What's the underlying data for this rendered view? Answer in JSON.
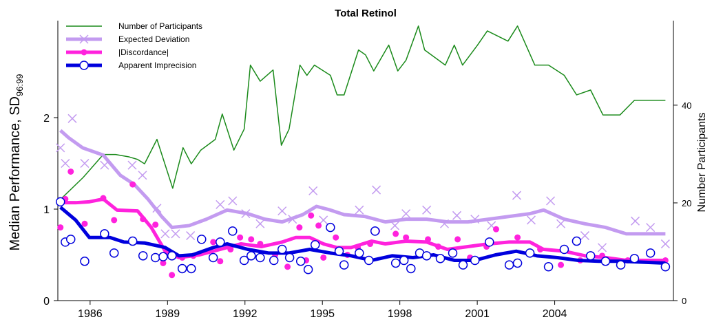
{
  "chart_data": {
    "type": "line",
    "title": "Total Retinol",
    "y_label": "Median Performance, SD",
    "y_label_subscript": "96:99",
    "y2_label": "Number Participants",
    "xlim": [
      1984.75,
      2008.6
    ],
    "xticks": [
      1986,
      1989,
      1992,
      1995,
      1998,
      2001,
      2004
    ],
    "ylim": [
      0,
      3.06
    ],
    "yticks": [
      0,
      1,
      2
    ],
    "y2lim": [
      0,
      57.3
    ],
    "y2ticks": [
      0,
      20,
      40
    ],
    "legend": "upper left",
    "series": [
      {
        "name": "Number of Participants",
        "color": "#1a8a1a",
        "axis": "y2",
        "width": 1.5,
        "marker": "none",
        "x": [
          1984.85,
          1985.73,
          1986.51,
          1986.99,
          1987.52,
          1987.84,
          1988.11,
          1988.59,
          1989.2,
          1989.6,
          1989.92,
          1990.29,
          1990.85,
          1991.12,
          1991.57,
          1991.97,
          1992.21,
          1992.59,
          1993.09,
          1993.41,
          1993.71,
          1994.13,
          1994.4,
          1994.69,
          1995.31,
          1995.57,
          1995.84,
          1996.4,
          1996.67,
          1996.99,
          1997.57,
          1997.92,
          1998.24,
          1998.72,
          1998.96,
          1999.76,
          2000.11,
          2000.43,
          2001.01,
          2001.39,
          2002.19,
          2002.56,
          2003.23,
          2003.76,
          2004.37,
          2004.85,
          2005.39,
          2005.87,
          2006.53,
          2007.09,
          2008.29
        ],
        "values": [
          20.7,
          25.2,
          29.9,
          29.9,
          29.4,
          28.9,
          28.0,
          33.0,
          23.0,
          31.3,
          28.0,
          30.8,
          33.0,
          38.2,
          30.8,
          35.1,
          48.2,
          44.9,
          47.2,
          31.8,
          35.1,
          48.2,
          46.1,
          48.2,
          46.1,
          42.1,
          42.1,
          51.3,
          50.3,
          47.0,
          52.3,
          47.0,
          49.2,
          56.2,
          51.3,
          48.2,
          52.3,
          48.2,
          52.3,
          55.2,
          53.1,
          56.2,
          48.2,
          48.2,
          46.1,
          42.1,
          43.1,
          38.0,
          38.0,
          41.0,
          41.0
        ]
      },
      {
        "name": "Expected Deviation",
        "color": "#c39bf0",
        "axis": "y",
        "width": 5,
        "marker": "cross",
        "x": [
          1984.85,
          1985.17,
          1985.71,
          1986.51,
          1987.17,
          1987.71,
          1988.24,
          1988.77,
          1989.17,
          1989.84,
          1990.51,
          1991.31,
          1992.11,
          1992.77,
          1993.44,
          1994.24,
          1994.77,
          1995.31,
          1995.84,
          1996.64,
          1997.44,
          1998.24,
          1999.04,
          1999.84,
          2000.64,
          2001.44,
          2002.24,
          2003.04,
          2003.57,
          2004.37,
          2005.17,
          2005.97,
          2006.77,
          2008.29
        ],
        "values": [
          1.86,
          1.78,
          1.67,
          1.59,
          1.37,
          1.27,
          1.11,
          0.92,
          0.8,
          0.82,
          0.89,
          0.99,
          0.95,
          0.89,
          0.86,
          0.94,
          1.03,
          0.99,
          0.94,
          0.92,
          0.86,
          0.89,
          0.89,
          0.86,
          0.86,
          0.89,
          0.92,
          0.95,
          0.99,
          0.89,
          0.84,
          0.8,
          0.73,
          0.73
        ],
        "points_x": [
          1984.85,
          1985.04,
          1985.31,
          1985.79,
          1986.56,
          1987.63,
          1988.03,
          1988.59,
          1988.91,
          1989.31,
          1989.89,
          1991.04,
          1991.52,
          1992.03,
          1992.59,
          1993.44,
          1993.84,
          1994.64,
          1995.04,
          1996.43,
          1997.09,
          1997.81,
          1998.24,
          1999.04,
          1999.73,
          2000.21,
          2000.91,
          2001.55,
          2002.53,
          2003.09,
          2003.84,
          2004.24,
          2005.17,
          2005.84,
          2007.12,
          2007.71,
          2008.29
        ],
        "points": [
          1.67,
          1.5,
          1.99,
          1.5,
          1.48,
          1.48,
          1.37,
          1.01,
          0.73,
          0.73,
          0.71,
          1.05,
          1.09,
          0.95,
          0.84,
          0.98,
          0.89,
          1.2,
          0.88,
          0.99,
          1.21,
          0.82,
          0.95,
          0.99,
          0.84,
          0.93,
          0.89,
          0.82,
          1.15,
          0.88,
          1.09,
          0.84,
          0.71,
          0.58,
          0.87,
          0.8,
          0.62
        ]
      },
      {
        "name": "|Discordance|",
        "color": "#ff22dd",
        "axis": "y",
        "width": 5,
        "marker": "dot",
        "x": [
          1984.85,
          1985.44,
          1985.97,
          1986.51,
          1987.04,
          1987.84,
          1988.37,
          1988.91,
          1989.44,
          1990.24,
          1991.04,
          1991.84,
          1992.64,
          1993.44,
          1993.97,
          1994.51,
          1995.04,
          1995.57,
          1996.11,
          1996.91,
          1997.44,
          1998.24,
          1999.04,
          1999.84,
          2000.64,
          2001.44,
          2002.24,
          2003.04,
          2003.57,
          2004.37,
          2005.17,
          2005.97,
          2006.77,
          2008.29
        ],
        "values": [
          1.07,
          1.07,
          1.08,
          1.11,
          0.99,
          0.98,
          0.8,
          0.54,
          0.47,
          0.5,
          0.56,
          0.62,
          0.59,
          0.64,
          0.69,
          0.69,
          0.62,
          0.58,
          0.58,
          0.65,
          0.62,
          0.65,
          0.64,
          0.56,
          0.59,
          0.62,
          0.64,
          0.64,
          0.56,
          0.54,
          0.49,
          0.47,
          0.44,
          0.44
        ],
        "points_x": [
          1984.85,
          1985.04,
          1985.25,
          1985.79,
          1986.51,
          1986.93,
          1987.65,
          1988.05,
          1988.53,
          1988.83,
          1989.17,
          1989.57,
          1990.0,
          1990.77,
          1991.04,
          1991.44,
          1991.81,
          1992.24,
          1992.59,
          1993.17,
          1993.65,
          1994.11,
          1994.37,
          1994.56,
          1994.85,
          1995.04,
          1995.52,
          1995.97,
          1996.37,
          1996.85,
          1997.12,
          1997.84,
          1998.24,
          1999.09,
          1999.49,
          2000.24,
          2000.72,
          2001.36,
          2001.73,
          2002.56,
          2003.44,
          2004.24,
          2004.99,
          2005.84,
          2006.83,
          2008.29
        ],
        "points": [
          0.8,
          1.11,
          1.41,
          0.84,
          1.12,
          0.88,
          1.27,
          0.89,
          0.83,
          0.41,
          0.28,
          0.47,
          0.49,
          0.64,
          0.43,
          0.56,
          0.69,
          0.67,
          0.62,
          0.5,
          0.37,
          0.8,
          0.44,
          0.93,
          0.82,
          0.47,
          0.69,
          0.5,
          0.58,
          0.62,
          0.76,
          0.73,
          0.69,
          0.67,
          0.59,
          0.67,
          0.47,
          0.59,
          0.78,
          0.69,
          0.56,
          0.39,
          0.44,
          0.49,
          0.44,
          0.44
        ]
      },
      {
        "name": "Apparent Imprecision",
        "color": "#0000dd",
        "axis": "y",
        "width": 5,
        "marker": "circle",
        "x": [
          1984.85,
          1985.44,
          1985.97,
          1986.77,
          1987.31,
          1988.11,
          1988.91,
          1989.44,
          1989.97,
          1990.77,
          1991.31,
          1992.11,
          1992.91,
          1993.71,
          1994.51,
          1995.31,
          1996.11,
          1996.91,
          1997.71,
          1998.51,
          1999.31,
          2000.11,
          2000.91,
          2001.71,
          2002.51,
          2003.31,
          2004.11,
          2004.91,
          2005.71,
          2006.51,
          2008.29
        ],
        "values": [
          1.02,
          0.88,
          0.69,
          0.69,
          0.64,
          0.63,
          0.58,
          0.49,
          0.5,
          0.58,
          0.62,
          0.56,
          0.52,
          0.52,
          0.56,
          0.52,
          0.49,
          0.44,
          0.49,
          0.47,
          0.5,
          0.44,
          0.44,
          0.5,
          0.54,
          0.49,
          0.47,
          0.44,
          0.43,
          0.43,
          0.41
        ],
        "points_x": [
          1984.85,
          1985.04,
          1985.25,
          1985.79,
          1986.56,
          1986.93,
          1987.65,
          1988.05,
          1988.53,
          1988.83,
          1989.17,
          1989.57,
          1989.92,
          1990.32,
          1990.77,
          1991.04,
          1991.52,
          1991.97,
          1992.24,
          1992.59,
          1993.12,
          1993.44,
          1993.73,
          1994.16,
          1994.45,
          1994.72,
          1995.31,
          1995.65,
          1995.84,
          1996.43,
          1996.8,
          1997.04,
          1997.84,
          1998.16,
          1998.43,
          1998.77,
          1999.04,
          1999.57,
          2000.05,
          2000.45,
          2000.91,
          2001.47,
          2002.24,
          2002.56,
          2003.04,
          2003.76,
          2004.37,
          2004.85,
          2005.39,
          2005.97,
          2006.56,
          2007.09,
          2007.71,
          2008.29
        ],
        "points": [
          1.08,
          0.64,
          0.67,
          0.43,
          0.73,
          0.52,
          0.65,
          0.49,
          0.47,
          0.48,
          0.49,
          0.35,
          0.35,
          0.67,
          0.47,
          0.64,
          0.76,
          0.44,
          0.49,
          0.47,
          0.44,
          0.56,
          0.47,
          0.43,
          0.34,
          0.61,
          0.8,
          0.54,
          0.39,
          0.52,
          0.44,
          0.76,
          0.41,
          0.44,
          0.35,
          0.52,
          0.49,
          0.46,
          0.52,
          0.39,
          0.44,
          0.64,
          0.39,
          0.41,
          0.52,
          0.37,
          0.56,
          0.65,
          0.49,
          0.43,
          0.39,
          0.46,
          0.52,
          0.37
        ]
      }
    ]
  }
}
